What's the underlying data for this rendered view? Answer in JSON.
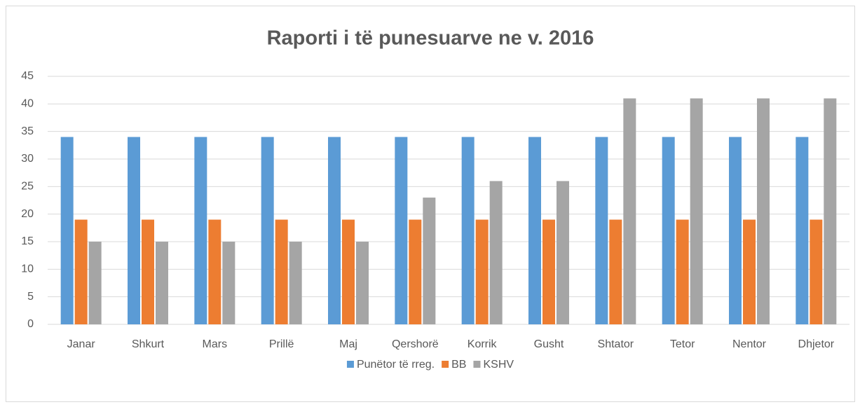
{
  "chart_data": {
    "type": "bar",
    "title": "Raporti i të punesuarve ne v. 2016",
    "categories": [
      "Janar",
      "Shkurt",
      "Mars",
      "Prillë",
      "Maj",
      "Qershorë",
      "Korrik",
      "Gusht",
      "Shtator",
      "Tetor",
      "Nentor",
      "Dhjetor"
    ],
    "series": [
      {
        "name": "Punëtor të rreg.",
        "color": "#5b9bd5",
        "values": [
          34,
          34,
          34,
          34,
          34,
          34,
          34,
          34,
          34,
          34,
          34,
          34
        ]
      },
      {
        "name": "BB",
        "color": "#ed7d31",
        "values": [
          19,
          19,
          19,
          19,
          19,
          19,
          19,
          19,
          19,
          19,
          19,
          19
        ]
      },
      {
        "name": "KSHV",
        "color": "#a5a5a5",
        "values": [
          15,
          15,
          15,
          15,
          15,
          23,
          26,
          26,
          41,
          41,
          41,
          41
        ]
      }
    ],
    "ylim": [
      0,
      45
    ],
    "yticks": [
      0,
      5,
      10,
      15,
      20,
      25,
      30,
      35,
      40,
      45
    ],
    "grid": true,
    "legend": "bottom"
  }
}
